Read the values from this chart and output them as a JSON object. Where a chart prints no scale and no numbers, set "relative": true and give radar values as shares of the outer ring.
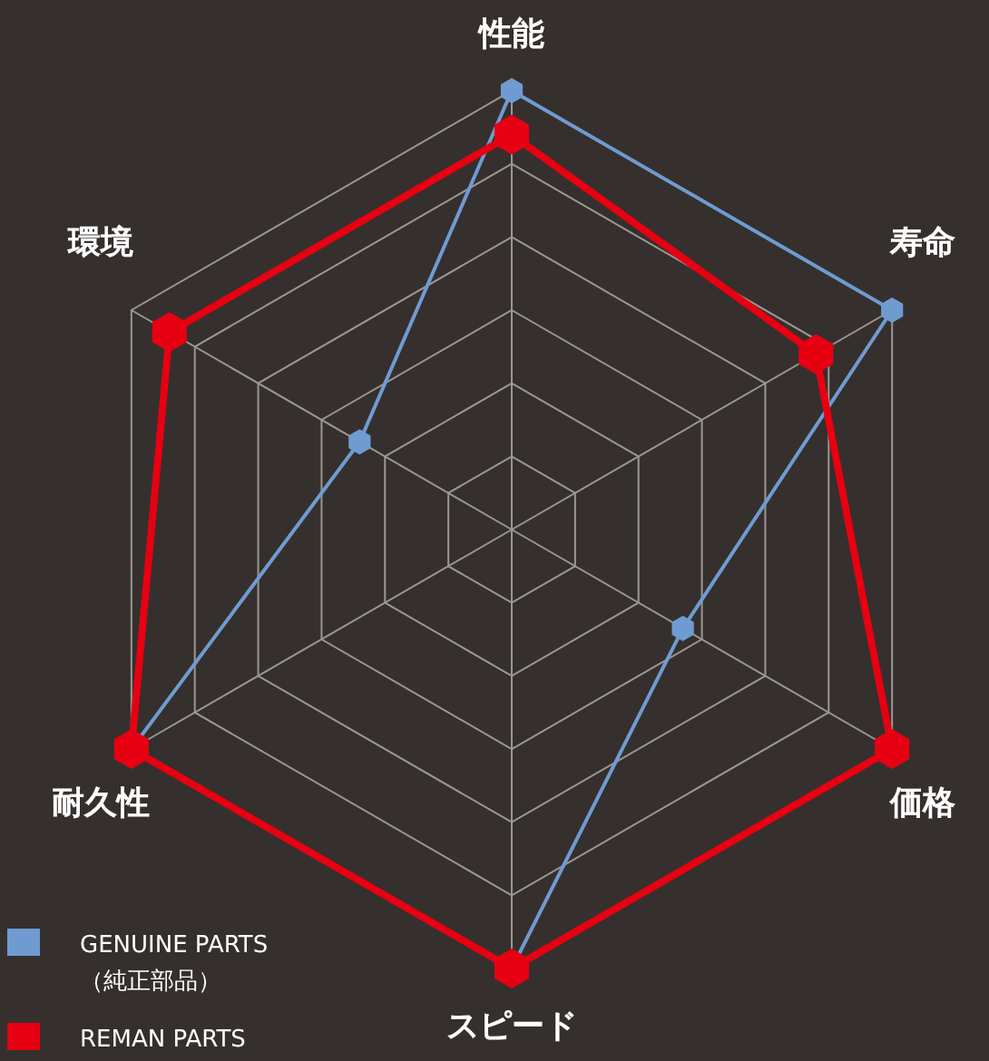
{
  "chart_data": {
    "type": "radar",
    "relative": true,
    "categories": [
      "性能",
      "寿命",
      "価格",
      "スピード",
      "耐久性",
      "環境"
    ],
    "series": [
      {
        "name": "GENUINE PARTS（純正部品）",
        "color": "#6f9bd1",
        "values": [
          1,
          1,
          0.45,
          1,
          1,
          0.4
        ]
      },
      {
        "name": "REMAN PARTS",
        "color": "#e60012",
        "values": [
          0.9,
          0.8,
          1,
          1,
          1,
          0.9
        ]
      }
    ],
    "legend": "bottom left"
  }
}
